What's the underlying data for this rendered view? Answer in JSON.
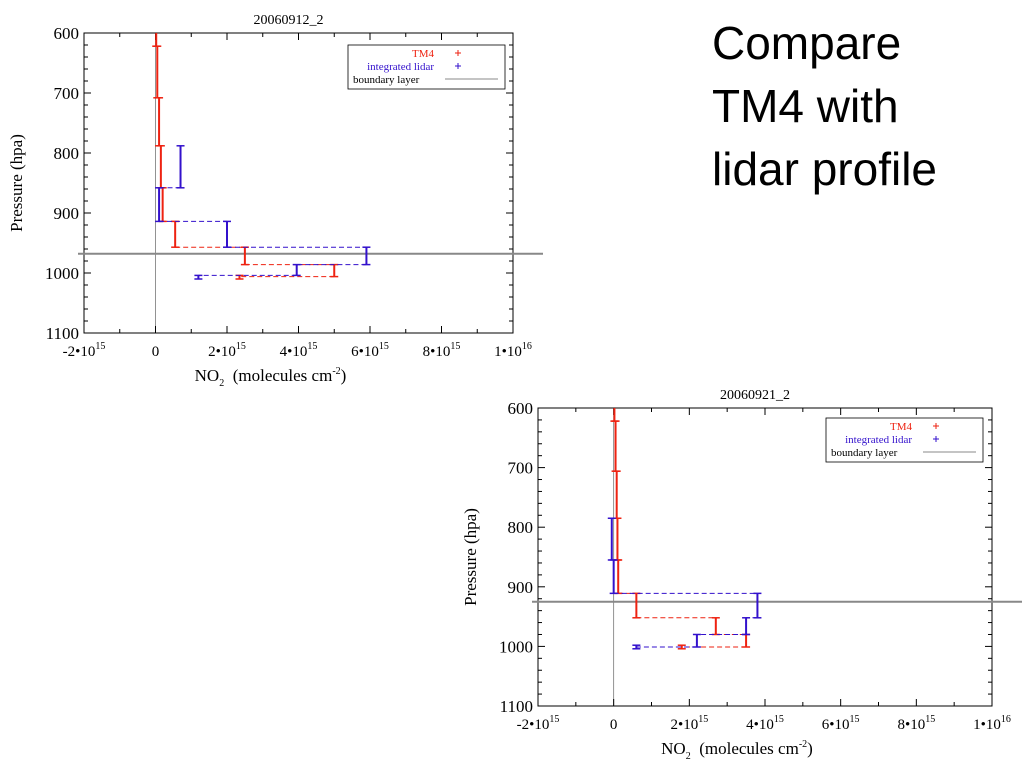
{
  "slide": {
    "title_lines": [
      "Compare",
      "TM4 with",
      "lidar profile"
    ]
  },
  "colors": {
    "tm4": "#ee2211",
    "lidar": "#3311cc",
    "boundary": "#888888",
    "axis": "#000000"
  },
  "legend_labels": {
    "tm4": "TM4",
    "lidar": "integrated lidar",
    "boundary": "boundary layer"
  },
  "chart_data": [
    {
      "type": "line",
      "title": "20060912_2",
      "xlabel_main": "NO",
      "xlabel_sub": "2",
      "xlabel_rest": "(molecules cm",
      "xlabel_sup": "-2",
      "xlabel_close": ")",
      "ylabel": "Pressure (hpa)",
      "xlim": [
        -2000000000000000.0,
        1e+16
      ],
      "ylim": [
        600,
        1100
      ],
      "x_ticks": [
        {
          "value": -2000000000000000.0,
          "mantissa": "-2",
          "exp": "15"
        },
        {
          "value": 0,
          "mantissa": "0",
          "exp": ""
        },
        {
          "value": 2000000000000000.0,
          "mantissa": "2",
          "exp": "15"
        },
        {
          "value": 4000000000000000.0,
          "mantissa": "4",
          "exp": "15"
        },
        {
          "value": 6000000000000000.0,
          "mantissa": "6",
          "exp": "15"
        },
        {
          "value": 8000000000000000.0,
          "mantissa": "8",
          "exp": "15"
        },
        {
          "value": 1e+16,
          "mantissa": "1",
          "exp": "16"
        }
      ],
      "y_ticks": [
        600,
        700,
        800,
        900,
        1000,
        1100
      ],
      "boundary_layer": 968,
      "series": [
        {
          "name": "TM4",
          "levels": [
            {
              "value": 20000000000000.0,
              "p_top": 550,
              "p_bot": 622
            },
            {
              "value": 50000000000000.0,
              "p_top": 622,
              "p_bot": 708
            },
            {
              "value": 100000000000000.0,
              "p_top": 708,
              "p_bot": 788
            },
            {
              "value": 150000000000000.0,
              "p_top": 788,
              "p_bot": 858
            },
            {
              "value": 200000000000000.0,
              "p_top": 858,
              "p_bot": 914
            },
            {
              "value": 550000000000000.0,
              "p_top": 914,
              "p_bot": 957
            },
            {
              "value": 2500000000000000.0,
              "p_top": 957,
              "p_bot": 986
            },
            {
              "value": 5000000000000000.0,
              "p_top": 986,
              "p_bot": 1006
            },
            {
              "value": 2350000000000000.0,
              "p_top": 1004,
              "p_bot": 1010
            }
          ]
        },
        {
          "name": "integrated lidar",
          "levels": [
            {
              "value": 700000000000000.0,
              "p_top": 788,
              "p_bot": 858
            },
            {
              "value": 100000000000000.0,
              "p_top": 858,
              "p_bot": 914
            },
            {
              "value": 2000000000000000.0,
              "p_top": 914,
              "p_bot": 957
            },
            {
              "value": 5900000000000000.0,
              "p_top": 957,
              "p_bot": 986
            },
            {
              "value": 3950000000000000.0,
              "p_top": 986,
              "p_bot": 1004
            },
            {
              "value": 1200000000000000.0,
              "p_top": 1004,
              "p_bot": 1010
            }
          ]
        }
      ]
    },
    {
      "type": "line",
      "title": "20060921_2",
      "xlabel_main": "NO",
      "xlabel_sub": "2",
      "xlabel_rest": "(molecules cm",
      "xlabel_sup": "-2",
      "xlabel_close": ")",
      "ylabel": "Pressure (hpa)",
      "xlim": [
        -2000000000000000.0,
        1e+16
      ],
      "ylim": [
        600,
        1100
      ],
      "x_ticks": [
        {
          "value": -2000000000000000.0,
          "mantissa": "-2",
          "exp": "15"
        },
        {
          "value": 0,
          "mantissa": "0",
          "exp": ""
        },
        {
          "value": 2000000000000000.0,
          "mantissa": "2",
          "exp": "15"
        },
        {
          "value": 4000000000000000.0,
          "mantissa": "4",
          "exp": "15"
        },
        {
          "value": 6000000000000000.0,
          "mantissa": "6",
          "exp": "15"
        },
        {
          "value": 8000000000000000.0,
          "mantissa": "8",
          "exp": "15"
        },
        {
          "value": 1e+16,
          "mantissa": "1",
          "exp": "16"
        }
      ],
      "y_ticks": [
        600,
        700,
        800,
        900,
        1000,
        1100
      ],
      "boundary_layer": 925,
      "series": [
        {
          "name": "TM4",
          "levels": [
            {
              "value": 20000000000000.0,
              "p_top": 550,
              "p_bot": 622
            },
            {
              "value": 50000000000000.0,
              "p_top": 622,
              "p_bot": 706
            },
            {
              "value": 80000000000000.0,
              "p_top": 706,
              "p_bot": 785
            },
            {
              "value": 100000000000000.0,
              "p_top": 785,
              "p_bot": 855
            },
            {
              "value": 120000000000000.0,
              "p_top": 855,
              "p_bot": 911
            },
            {
              "value": 600000000000000.0,
              "p_top": 911,
              "p_bot": 952
            },
            {
              "value": 2700000000000000.0,
              "p_top": 952,
              "p_bot": 980
            },
            {
              "value": 3500000000000000.0,
              "p_top": 980,
              "p_bot": 1001
            },
            {
              "value": 1800000000000000.0,
              "p_top": 998,
              "p_bot": 1004
            }
          ]
        },
        {
          "name": "integrated lidar",
          "levels": [
            {
              "value": -50000000000000.0,
              "p_top": 785,
              "p_bot": 855
            },
            {
              "value": 0.0,
              "p_top": 855,
              "p_bot": 911
            },
            {
              "value": 3800000000000000.0,
              "p_top": 911,
              "p_bot": 952
            },
            {
              "value": 3500000000000000.0,
              "p_top": 952,
              "p_bot": 980
            },
            {
              "value": 2200000000000000.0,
              "p_top": 980,
              "p_bot": 1001
            },
            {
              "value": 600000000000000.0,
              "p_top": 998,
              "p_bot": 1004
            }
          ]
        }
      ]
    }
  ]
}
